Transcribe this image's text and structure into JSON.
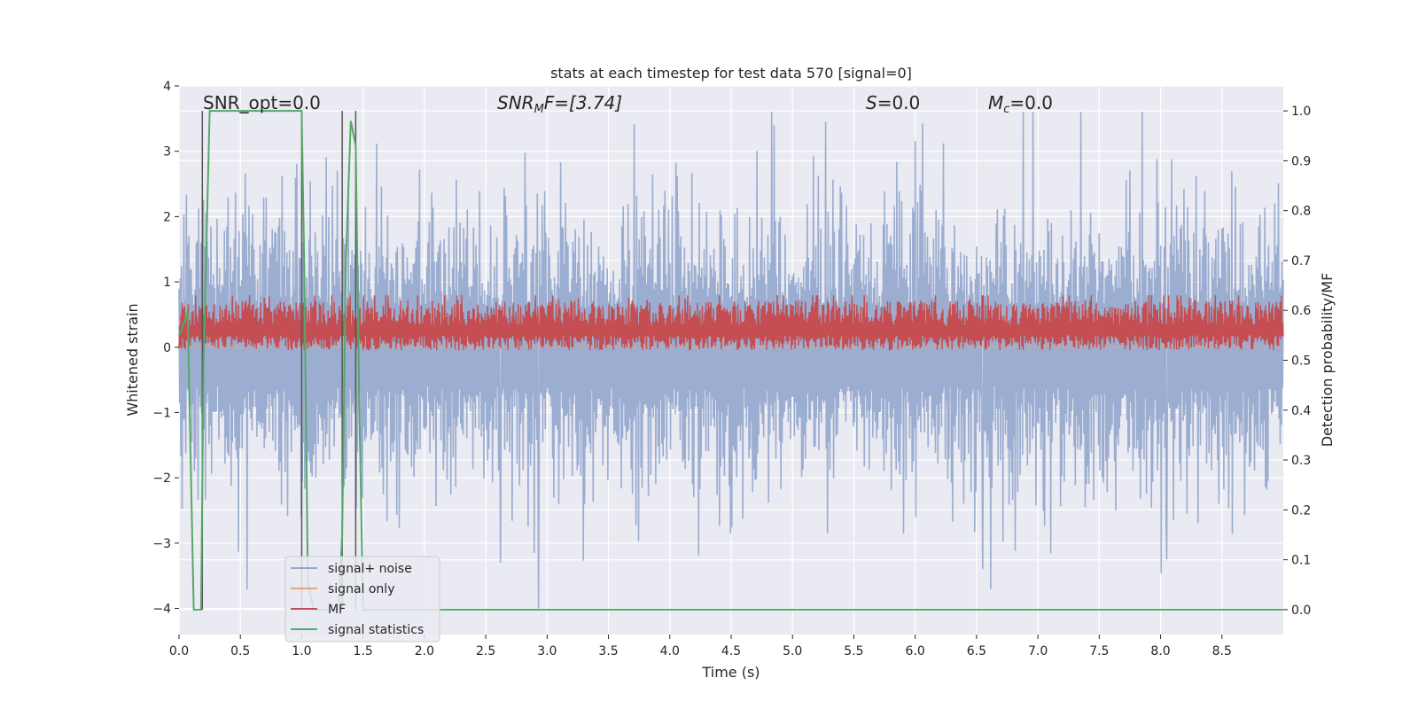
{
  "chart_data": {
    "type": "line",
    "title": "stats at each timestep for test data 570 [signal=0]",
    "xlabel": "Time (s)",
    "ylabel": "Whitened strain",
    "y2label": "Detection probability/MF",
    "xlim": [
      0.0,
      9.0
    ],
    "ylim": [
      -4.4,
      4.0
    ],
    "y2lim": [
      -0.05,
      1.05
    ],
    "xticks": [
      "0.0",
      "0.5",
      "1.0",
      "1.5",
      "2.0",
      "2.5",
      "3.0",
      "3.5",
      "4.0",
      "4.5",
      "5.0",
      "5.5",
      "6.0",
      "6.5",
      "7.0",
      "7.5",
      "8.0",
      "8.5"
    ],
    "yticks": [
      "4",
      "3",
      "2",
      "1",
      "0",
      "−1",
      "−2",
      "−3",
      "−4"
    ],
    "y2ticks": [
      "1.0",
      "0.9",
      "0.8",
      "0.7",
      "0.6",
      "0.5",
      "0.4",
      "0.3",
      "0.2",
      "0.1",
      "0.0"
    ],
    "grid": true,
    "annotations": {
      "snr_opt": "SNR_opt=0.0",
      "snr_mf_name": "SNR",
      "snr_mf_sub": "M",
      "snr_mf_rest": "F=[3.74]",
      "s_name": "S",
      "s_rest": "=0.0",
      "mc_name": "M",
      "mc_sub": "c",
      "mc_rest": "=0.0"
    },
    "legend": {
      "position": "lower-left",
      "entries": [
        "signal+ noise",
        "signal only",
        "MF",
        "signal statistics"
      ]
    },
    "colors": {
      "noise": "#92a6cc",
      "signal_only": "#e8a080",
      "mf": "#c44e52",
      "stat": "#55a868",
      "vline": "#555555",
      "background": "#eaeaf2"
    },
    "series": [
      {
        "name": "signal statistics",
        "axis": "right",
        "x": [
          0.0,
          0.05,
          0.07,
          0.12,
          0.18,
          0.2,
          0.25,
          0.3,
          0.5,
          1.0,
          1.02,
          1.05,
          1.1,
          1.3,
          1.33,
          1.36,
          1.4,
          1.44,
          1.47,
          1.5,
          9.0
        ],
        "values": [
          0.55,
          0.58,
          0.6,
          0.0,
          0.0,
          0.5,
          1.0,
          1.0,
          1.0,
          1.0,
          0.7,
          0.05,
          0.0,
          0.0,
          0.15,
          0.7,
          0.98,
          0.93,
          0.4,
          0.0,
          0.0
        ]
      }
    ],
    "noise_envelope": {
      "description": "whitened strain samples fluctuate roughly between -4 and 3.6",
      "typical_low": -1.8,
      "typical_high": 1.8,
      "extreme_points": [
        {
          "x": 2.93,
          "y": -4.0
        },
        {
          "x": 6.55,
          "y": -3.4
        },
        {
          "x": 2.62,
          "y": -3.3
        },
        {
          "x": 7.85,
          "y": 3.6
        },
        {
          "x": 5.27,
          "y": 3.45
        },
        {
          "x": 4.85,
          "y": 3.4
        },
        {
          "x": 8.05,
          "y": -3.25
        }
      ]
    },
    "mf_band": {
      "typical_low": 0.52,
      "typical_high": 0.62,
      "max": 0.63
    },
    "vertical_lines_x": [
      0.19,
      1.0,
      1.33,
      1.44
    ]
  }
}
